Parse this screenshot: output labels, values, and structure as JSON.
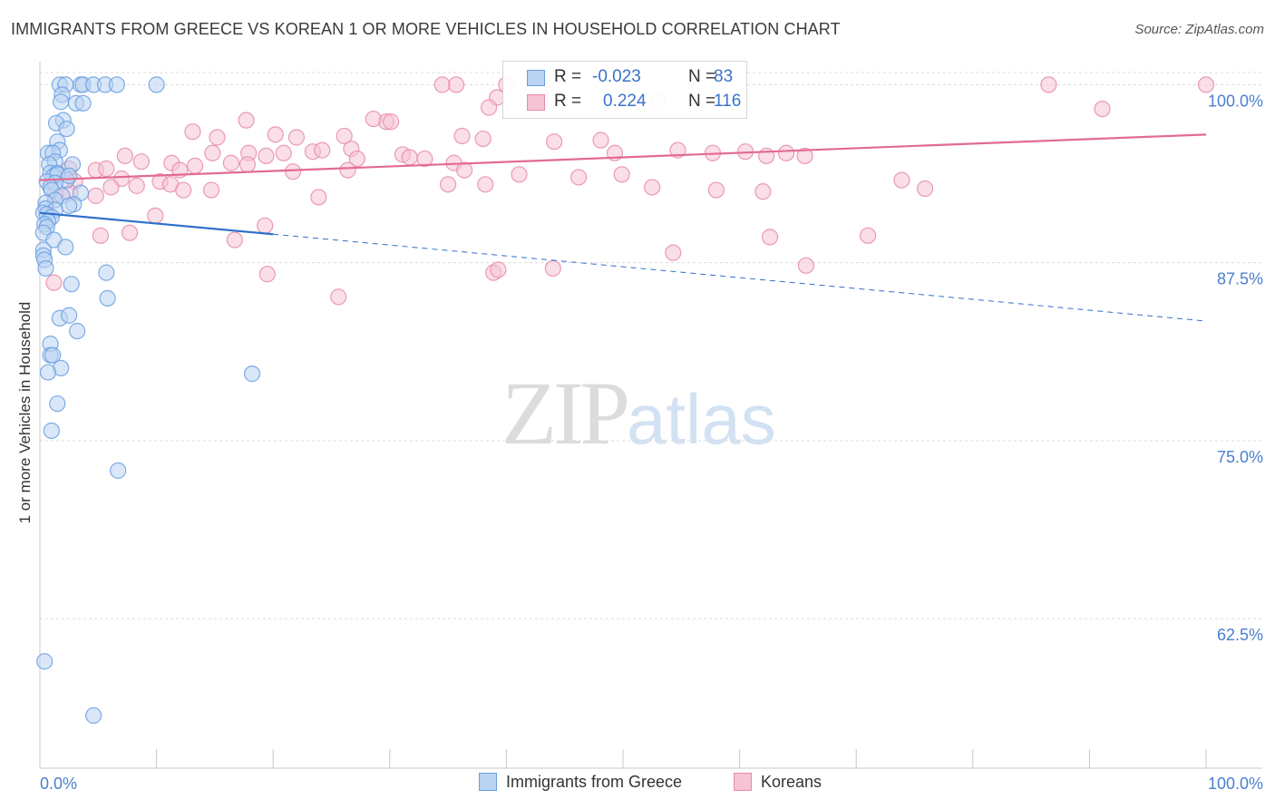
{
  "title": "IMMIGRANTS FROM GREECE VS KOREAN 1 OR MORE VEHICLES IN HOUSEHOLD CORRELATION CHART",
  "source": "Source: ZipAtlas.com",
  "watermark": {
    "zip": "ZIP",
    "atlas": "atlas"
  },
  "legend": {
    "r_label": "R =",
    "n_label": "N =",
    "rows": [
      {
        "r": "-0.023",
        "n": "83",
        "color": "#6a9fe0",
        "fill": "#b9d3f3"
      },
      {
        "r": "0.224",
        "n": "116",
        "color": "#e889a9",
        "fill": "#f6c3d5"
      }
    ]
  },
  "chart_data": {
    "type": "scatter",
    "xlabel": "",
    "ylabel": "1 or more Vehicles in Household",
    "xlim": [
      0,
      100
    ],
    "ylim": [
      52,
      102
    ],
    "x_tick_labels": [
      "0.0%",
      "100.0%"
    ],
    "y_ticks": [
      62.5,
      75.0,
      87.5,
      100.0
    ],
    "y_tick_labels": [
      "62.5%",
      "75.0%",
      "87.5%",
      "100.0%"
    ],
    "grid": true,
    "legend_position": "top-center",
    "series": [
      {
        "name": "Immigrants from Greece",
        "color": "#6a9fe0",
        "fill": "#b9d3f3",
        "trend": {
          "x0": 0,
          "y0": 91.0,
          "x1": 20,
          "y1": 89.5,
          "dash_x1": 100,
          "dash_y1": 83.4
        },
        "points": [
          [
            1.7,
            100
          ],
          [
            2.2,
            100
          ],
          [
            3.5,
            100
          ],
          [
            3.7,
            100
          ],
          [
            4.6,
            100
          ],
          [
            5.6,
            100
          ],
          [
            6.6,
            100
          ],
          [
            10.0,
            100
          ],
          [
            1.9,
            99.3
          ],
          [
            1.8,
            98.8
          ],
          [
            3.1,
            98.7
          ],
          [
            3.7,
            98.7
          ],
          [
            2.0,
            97.5
          ],
          [
            1.4,
            97.3
          ],
          [
            2.3,
            96.9
          ],
          [
            1.5,
            96.0
          ],
          [
            0.7,
            95.2
          ],
          [
            1.7,
            95.4
          ],
          [
            1.1,
            95.2
          ],
          [
            1.3,
            94.6
          ],
          [
            0.8,
            94.4
          ],
          [
            2.8,
            94.4
          ],
          [
            0.9,
            93.8
          ],
          [
            1.5,
            93.8
          ],
          [
            1.2,
            93.6
          ],
          [
            1.5,
            93.7
          ],
          [
            2.3,
            93.3
          ],
          [
            2.5,
            93.6
          ],
          [
            0.6,
            93.2
          ],
          [
            1.3,
            93.1
          ],
          [
            0.9,
            92.8
          ],
          [
            1.0,
            92.6
          ],
          [
            1.9,
            92.2
          ],
          [
            3.5,
            92.4
          ],
          [
            1.3,
            91.9
          ],
          [
            0.5,
            91.7
          ],
          [
            2.9,
            91.6
          ],
          [
            2.5,
            91.5
          ],
          [
            0.5,
            91.3
          ],
          [
            1.3,
            91.2
          ],
          [
            0.3,
            91.0
          ],
          [
            0.6,
            90.9
          ],
          [
            1.0,
            90.7
          ],
          [
            0.7,
            90.4
          ],
          [
            0.4,
            90.2
          ],
          [
            0.6,
            90.0
          ],
          [
            0.3,
            89.6
          ],
          [
            1.2,
            89.1
          ],
          [
            2.2,
            88.6
          ],
          [
            0.3,
            88.4
          ],
          [
            0.3,
            88.0
          ],
          [
            0.4,
            87.7
          ],
          [
            0.5,
            87.1
          ],
          [
            5.7,
            86.8
          ],
          [
            2.7,
            86.0
          ],
          [
            5.8,
            85.0
          ],
          [
            1.7,
            83.6
          ],
          [
            2.5,
            83.8
          ],
          [
            3.2,
            82.7
          ],
          [
            0.9,
            81.8
          ],
          [
            0.9,
            81.0
          ],
          [
            1.1,
            81.0
          ],
          [
            1.8,
            80.1
          ],
          [
            0.7,
            79.8
          ],
          [
            18.2,
            79.7
          ],
          [
            1.5,
            77.6
          ],
          [
            1.0,
            75.7
          ],
          [
            6.7,
            72.9
          ],
          [
            0.4,
            59.5
          ],
          [
            4.6,
            55.7
          ]
        ]
      },
      {
        "name": "Koreans",
        "color": "#e889a9",
        "fill": "#f6c3d5",
        "trend": {
          "x0": 0,
          "y0": 93.3,
          "x1": 100,
          "y1": 96.5
        },
        "points": [
          [
            34.5,
            100
          ],
          [
            35.7,
            100
          ],
          [
            40.0,
            100
          ],
          [
            86.5,
            100
          ],
          [
            100,
            100
          ],
          [
            39.2,
            99.1
          ],
          [
            38.5,
            98.4
          ],
          [
            53.0,
            98.8
          ],
          [
            91.1,
            98.3
          ],
          [
            17.7,
            97.5
          ],
          [
            29.7,
            97.4
          ],
          [
            28.6,
            97.6
          ],
          [
            30.1,
            97.4
          ],
          [
            13.1,
            96.7
          ],
          [
            20.2,
            96.5
          ],
          [
            15.2,
            96.3
          ],
          [
            22.0,
            96.3
          ],
          [
            26.1,
            96.4
          ],
          [
            44.1,
            96.0
          ],
          [
            36.2,
            96.4
          ],
          [
            38.0,
            96.2
          ],
          [
            48.1,
            96.1
          ],
          [
            49.3,
            95.2
          ],
          [
            54.7,
            95.4
          ],
          [
            57.7,
            95.2
          ],
          [
            60.5,
            95.3
          ],
          [
            62.3,
            95.0
          ],
          [
            64.0,
            95.2
          ],
          [
            65.6,
            95.0
          ],
          [
            14.8,
            95.2
          ],
          [
            17.9,
            95.2
          ],
          [
            19.4,
            95.0
          ],
          [
            20.9,
            95.2
          ],
          [
            23.4,
            95.3
          ],
          [
            24.2,
            95.4
          ],
          [
            26.7,
            95.5
          ],
          [
            27.2,
            94.8
          ],
          [
            31.1,
            95.1
          ],
          [
            31.7,
            94.9
          ],
          [
            33.0,
            94.8
          ],
          [
            35.5,
            94.5
          ],
          [
            7.3,
            95.0
          ],
          [
            8.7,
            94.6
          ],
          [
            11.3,
            94.5
          ],
          [
            12.0,
            94.0
          ],
          [
            13.3,
            94.3
          ],
          [
            2.5,
            94.1
          ],
          [
            4.8,
            94.0
          ],
          [
            5.7,
            94.1
          ],
          [
            16.4,
            94.5
          ],
          [
            17.8,
            94.4
          ],
          [
            21.7,
            93.9
          ],
          [
            26.4,
            94.0
          ],
          [
            36.4,
            94.0
          ],
          [
            41.1,
            93.7
          ],
          [
            46.2,
            93.5
          ],
          [
            49.9,
            93.7
          ],
          [
            7.0,
            93.4
          ],
          [
            10.3,
            93.2
          ],
          [
            11.2,
            93.0
          ],
          [
            8.3,
            92.9
          ],
          [
            12.3,
            92.6
          ],
          [
            14.7,
            92.6
          ],
          [
            3.0,
            93.2
          ],
          [
            6.1,
            92.8
          ],
          [
            35.0,
            93.0
          ],
          [
            38.2,
            93.0
          ],
          [
            52.5,
            92.8
          ],
          [
            58.0,
            92.6
          ],
          [
            62.0,
            92.5
          ],
          [
            73.9,
            93.3
          ],
          [
            75.9,
            92.7
          ],
          [
            1.3,
            92.3
          ],
          [
            2.6,
            92.4
          ],
          [
            4.8,
            92.2
          ],
          [
            23.9,
            92.1
          ],
          [
            9.9,
            90.8
          ],
          [
            5.2,
            89.4
          ],
          [
            7.7,
            89.6
          ],
          [
            16.7,
            89.1
          ],
          [
            62.6,
            89.3
          ],
          [
            71.0,
            89.4
          ],
          [
            54.3,
            88.2
          ],
          [
            19.3,
            90.1
          ],
          [
            38.9,
            86.8
          ],
          [
            39.3,
            87.0
          ],
          [
            44.0,
            87.1
          ],
          [
            65.7,
            87.3
          ],
          [
            19.5,
            86.7
          ],
          [
            25.6,
            85.1
          ],
          [
            1.2,
            86.1
          ]
        ]
      }
    ]
  },
  "bottom_legend": [
    "Immigrants from Greece",
    "Koreans"
  ]
}
